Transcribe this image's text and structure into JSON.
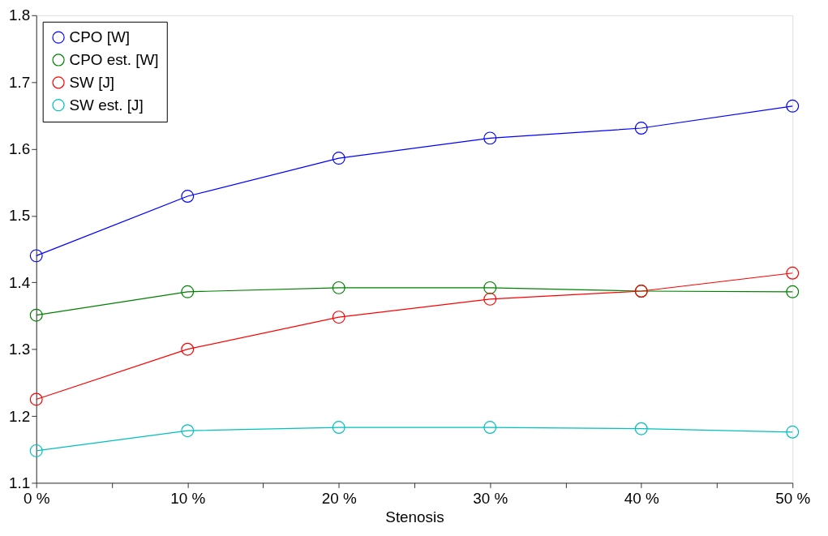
{
  "chart_data": {
    "type": "line",
    "xlabel": "Stenosis",
    "x": [
      0,
      10,
      20,
      30,
      40,
      50
    ],
    "xlim": [
      0,
      50
    ],
    "xticks": [
      {
        "value": 0,
        "label": "0 %"
      },
      {
        "value": 5,
        "label": null
      },
      {
        "value": 10,
        "label": "10 %"
      },
      {
        "value": 15,
        "label": null
      },
      {
        "value": 20,
        "label": "20 %"
      },
      {
        "value": 25,
        "label": null
      },
      {
        "value": 30,
        "label": "30 %"
      },
      {
        "value": 35,
        "label": null
      },
      {
        "value": 40,
        "label": "40 %"
      },
      {
        "value": 45,
        "label": null
      },
      {
        "value": 50,
        "label": "50 %"
      }
    ],
    "ylim": [
      1.1,
      1.8
    ],
    "yticks": [
      1.1,
      1.2,
      1.3,
      1.4,
      1.5,
      1.6,
      1.7,
      1.8
    ],
    "series": [
      {
        "name": "CPO [W]",
        "color": "#0000ff",
        "values": [
          1.44,
          1.529,
          1.586,
          1.616,
          1.631,
          1.664
        ]
      },
      {
        "name": "CPO est. [W]",
        "color": "#008000",
        "values": [
          1.351,
          1.386,
          1.392,
          1.392,
          1.387,
          1.386
        ]
      },
      {
        "name": "SW [J]",
        "color": "#ff0000",
        "values": [
          1.225,
          1.3,
          1.348,
          1.375,
          1.387,
          1.414
        ]
      },
      {
        "name": "SW est. [J]",
        "color": "#00bfbf",
        "values": [
          1.148,
          1.178,
          1.183,
          1.183,
          1.181,
          1.176
        ]
      }
    ],
    "marker": "circle",
    "line_style": "solid",
    "legend": "top left",
    "grid": false
  }
}
